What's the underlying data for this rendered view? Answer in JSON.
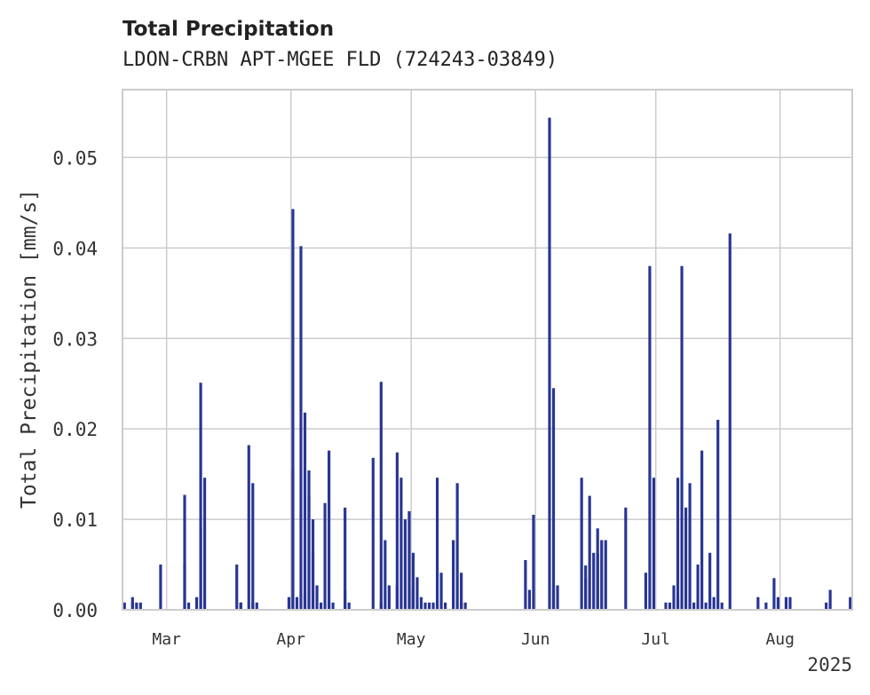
{
  "chart_data": {
    "type": "bar",
    "title": "Total Precipitation",
    "subtitle": "LDON-CRBN APT-MGEE FLD (724243-03849)",
    "ylabel": "Total Precipitation [mm/s]",
    "xlabel": "",
    "year_label": "2025",
    "ylim": [
      0,
      0.0575
    ],
    "xlim": [
      "2025-02-18",
      "2025-08-19"
    ],
    "grid": true,
    "bar_color": "#283593",
    "grid_color": "#cccccc",
    "yticks": [
      {
        "value": 0.0,
        "label": "0.00"
      },
      {
        "value": 0.01,
        "label": "0.01"
      },
      {
        "value": 0.02,
        "label": "0.02"
      },
      {
        "value": 0.03,
        "label": "0.03"
      },
      {
        "value": 0.04,
        "label": "0.04"
      },
      {
        "value": 0.05,
        "label": "0.05"
      }
    ],
    "xticks": [
      {
        "date": "2025-03-01",
        "label": "Mar"
      },
      {
        "date": "2025-04-01",
        "label": "Apr"
      },
      {
        "date": "2025-05-01",
        "label": "May"
      },
      {
        "date": "2025-06-01",
        "label": "Jun"
      },
      {
        "date": "2025-07-01",
        "label": "Jul"
      },
      {
        "date": "2025-08-01",
        "label": "Aug"
      }
    ],
    "x": [
      "2025-02-18",
      "2025-02-20",
      "2025-02-20",
      "2025-02-21",
      "2025-02-22",
      "2025-02-27",
      "2025-03-05",
      "2025-03-05",
      "2025-03-06",
      "2025-03-08",
      "2025-03-09",
      "2025-03-09",
      "2025-03-10",
      "2025-03-18",
      "2025-03-19",
      "2025-03-19",
      "2025-03-21",
      "2025-03-22",
      "2025-03-22",
      "2025-03-23",
      "2025-03-31",
      "2025-04-01",
      "2025-04-01",
      "2025-04-02",
      "2025-04-03",
      "2025-04-04",
      "2025-04-04",
      "2025-04-05",
      "2025-04-05",
      "2025-04-06",
      "2025-04-06",
      "2025-04-07",
      "2025-04-08",
      "2025-04-09",
      "2025-04-10",
      "2025-04-10",
      "2025-04-11",
      "2025-04-14",
      "2025-04-14",
      "2025-04-15",
      "2025-04-21",
      "2025-04-23",
      "2025-04-23",
      "2025-04-24",
      "2025-04-25",
      "2025-04-27",
      "2025-04-27",
      "2025-04-28",
      "2025-04-29",
      "2025-04-30",
      "2025-05-01",
      "2025-05-01",
      "2025-05-02",
      "2025-05-03",
      "2025-05-04",
      "2025-05-05",
      "2025-05-06",
      "2025-05-07",
      "2025-05-08",
      "2025-05-09",
      "2025-05-11",
      "2025-05-12",
      "2025-05-13",
      "2025-05-13",
      "2025-05-14",
      "2025-05-29",
      "2025-05-30",
      "2025-05-31",
      "2025-06-04",
      "2025-06-05",
      "2025-06-05",
      "2025-06-06",
      "2025-06-12",
      "2025-06-13",
      "2025-06-13",
      "2025-06-14",
      "2025-06-15",
      "2025-06-16",
      "2025-06-16",
      "2025-06-17",
      "2025-06-18",
      "2025-06-23",
      "2025-06-28",
      "2025-06-29",
      "2025-06-30",
      "2025-07-03",
      "2025-07-04",
      "2025-07-05",
      "2025-07-06",
      "2025-07-06",
      "2025-07-07",
      "2025-07-08",
      "2025-07-09",
      "2025-07-10",
      "2025-07-11",
      "2025-07-12",
      "2025-07-13",
      "2025-07-14",
      "2025-07-15",
      "2025-07-16",
      "2025-07-17",
      "2025-07-19",
      "2025-07-26",
      "2025-07-28",
      "2025-07-30",
      "2025-07-31",
      "2025-08-02",
      "2025-08-03",
      "2025-08-12",
      "2025-08-13",
      "2025-08-18"
    ],
    "values": [
      0.0008,
      0.0014,
      0.0008,
      0.0008,
      0.0008,
      0.005,
      0.0127,
      0.005,
      0.0008,
      0.0014,
      0.009,
      0.0251,
      0.0146,
      0.005,
      0.0008,
      0.0008,
      0.0182,
      0.0008,
      0.014,
      0.0008,
      0.0014,
      0.0443,
      0.0154,
      0.0014,
      0.0402,
      0.0018,
      0.0218,
      0.0154,
      0.0126,
      0.01,
      0.0063,
      0.0027,
      0.0008,
      0.0118,
      0.0176,
      0.0008,
      0.0008,
      0.0022,
      0.0113,
      0.0008,
      0.0168,
      0.0252,
      0.0008,
      0.0077,
      0.0027,
      0.0174,
      0.0027,
      0.0146,
      0.01,
      0.0109,
      0.0022,
      0.0063,
      0.0036,
      0.0014,
      0.0008,
      0.0008,
      0.0008,
      0.0146,
      0.0041,
      0.0008,
      0.0077,
      0.014,
      0.0041,
      0.0008,
      0.0008,
      0.0055,
      0.0022,
      0.0105,
      0.0544,
      0.0245,
      0.0027,
      0.0027,
      0.0146,
      0.0035,
      0.0049,
      0.0126,
      0.0063,
      0.009,
      0.0063,
      0.0077,
      0.0077,
      0.0113,
      0.0041,
      0.038,
      0.0146,
      0.0008,
      0.0008,
      0.0027,
      0.0146,
      0.0014,
      0.038,
      0.0113,
      0.014,
      0.0008,
      0.005,
      0.0176,
      0.0008,
      0.0063,
      0.0014,
      0.021,
      0.0008,
      0.0416,
      0.0014,
      0.0008,
      0.0035,
      0.0014,
      0.0014,
      0.0014,
      0.0008,
      0.0022,
      0.0014
    ]
  }
}
